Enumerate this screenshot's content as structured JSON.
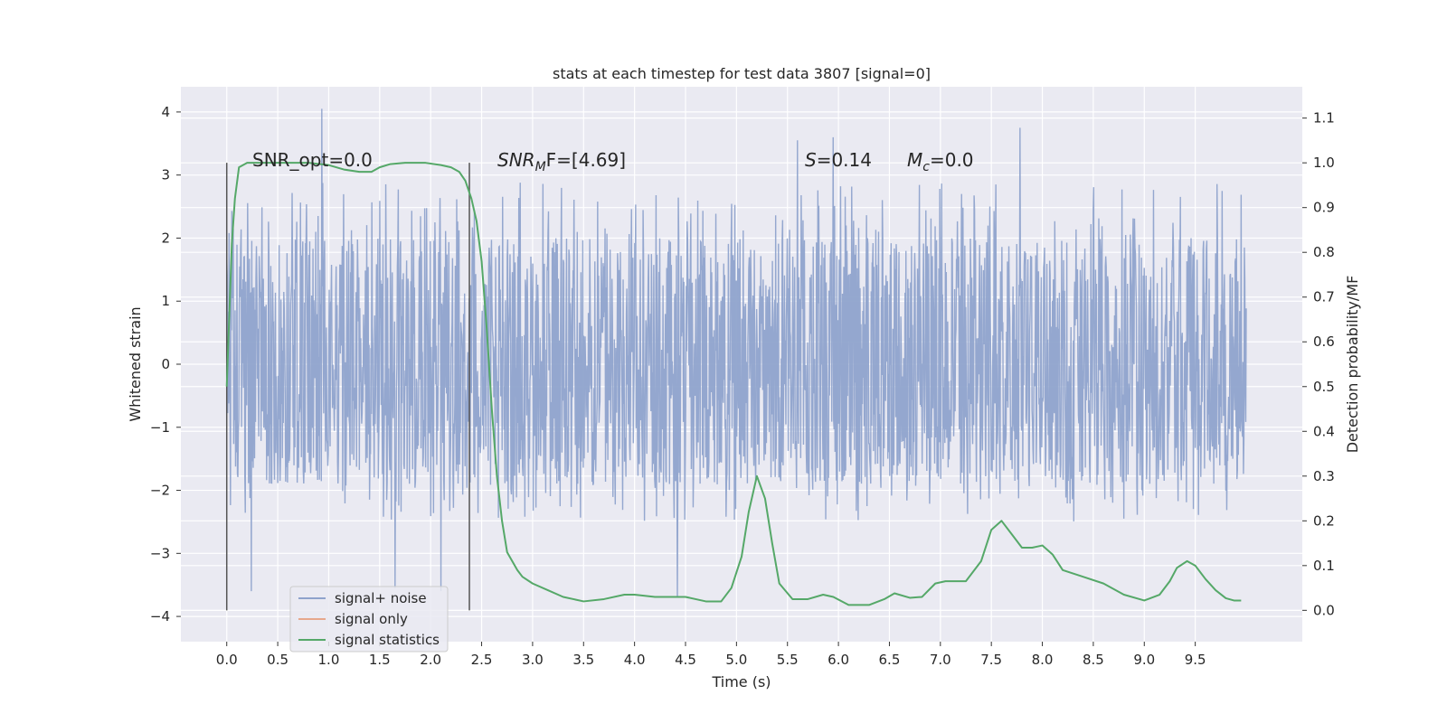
{
  "chart_data": {
    "type": "line",
    "title": "stats at each timestep for test data 3807 [signal=0]",
    "xlabel": "Time (s)",
    "ylabel": "Whitened strain",
    "y2label": "Detection probability/MF",
    "xlim": [
      -0.45,
      10.55
    ],
    "ylim": [
      -4.4,
      4.4
    ],
    "y2lim": [
      -0.07,
      1.17
    ],
    "x_ticks": [
      0.0,
      0.5,
      1.0,
      1.5,
      2.0,
      2.5,
      3.0,
      3.5,
      4.0,
      4.5,
      5.0,
      5.5,
      6.0,
      6.5,
      7.0,
      7.5,
      8.0,
      8.5,
      9.0,
      9.5
    ],
    "x_tick_labels": [
      "0.0",
      "0.5",
      "1.0",
      "1.5",
      "2.0",
      "2.5",
      "3.0",
      "3.5",
      "4.0",
      "4.5",
      "5.0",
      "5.5",
      "6.0",
      "6.5",
      "7.0",
      "7.5",
      "8.0",
      "8.5",
      "9.0",
      "9.5"
    ],
    "y_ticks": [
      -4,
      -3,
      -2,
      -1,
      0,
      1,
      2,
      3,
      4
    ],
    "y_tick_labels": [
      "−4",
      "−3",
      "−2",
      "−1",
      "0",
      "1",
      "2",
      "3",
      "4"
    ],
    "y2_ticks": [
      0.0,
      0.1,
      0.2,
      0.3,
      0.4,
      0.5,
      0.6,
      0.7,
      0.8,
      0.9,
      1.0,
      1.1
    ],
    "y2_tick_labels": [
      "0.0",
      "0.1",
      "0.2",
      "0.3",
      "0.4",
      "0.5",
      "0.6",
      "0.7",
      "0.8",
      "0.9",
      "1.0",
      "1.1"
    ],
    "grid": true,
    "legend_position": "lower-left",
    "legend": [
      {
        "label": "signal+ noise",
        "color": "#8fa3cc"
      },
      {
        "label": "signal only",
        "color": "#e7a88c"
      },
      {
        "label": "signal statistics",
        "color": "#55a868"
      }
    ],
    "annotations": {
      "snr_opt": "SNR_opt=0.0",
      "snr_mf_base": "SNR",
      "snr_mf_sub": "M",
      "snr_mf_rest": "F=[4.69]",
      "s_base": "S",
      "s_rest": "=0.14",
      "mc_base": "M",
      "mc_sub": "c",
      "mc_rest": "=0.0"
    },
    "vertical_markers": [
      0.0,
      2.38
    ],
    "noise": {
      "x_range": [
        0.0,
        10.0
      ],
      "dense_band": [
        -1.25,
        1.3
      ],
      "typical_peak_range": [
        -2.5,
        2.9
      ],
      "extremes": [
        {
          "x": 0.93,
          "y": 4.05
        },
        {
          "x": 0.24,
          "y": -3.6
        },
        {
          "x": 1.65,
          "y": -3.55
        },
        {
          "x": 2.1,
          "y": -3.6
        },
        {
          "x": 7.78,
          "y": 3.75
        },
        {
          "x": 5.6,
          "y": 3.55
        },
        {
          "x": 5.95,
          "y": 3.6
        },
        {
          "x": 4.42,
          "y": -3.7
        }
      ]
    },
    "series": [
      {
        "name": "signal statistics",
        "color": "#55a868",
        "x": [
          0.0,
          0.05,
          0.08,
          0.12,
          0.2,
          0.35,
          0.55,
          0.8,
          1.0,
          1.15,
          1.3,
          1.42,
          1.5,
          1.6,
          1.75,
          1.95,
          2.1,
          2.2,
          2.28,
          2.34,
          2.4,
          2.45,
          2.5,
          2.55,
          2.6,
          2.65,
          2.7,
          2.75,
          2.8,
          2.85,
          2.9,
          3.0,
          3.15,
          3.3,
          3.5,
          3.7,
          3.9,
          4.0,
          4.2,
          4.5,
          4.7,
          4.85,
          4.95,
          5.05,
          5.12,
          5.2,
          5.28,
          5.35,
          5.42,
          5.55,
          5.7,
          5.85,
          5.95,
          6.1,
          6.3,
          6.45,
          6.55,
          6.7,
          6.82,
          6.95,
          7.05,
          7.25,
          7.4,
          7.5,
          7.6,
          7.7,
          7.8,
          7.9,
          8.0,
          8.1,
          8.2,
          8.4,
          8.6,
          8.8,
          9.0,
          9.15,
          9.25,
          9.32,
          9.42,
          9.5,
          9.6,
          9.7,
          9.8,
          9.88,
          9.95
        ],
        "y": [
          0.5,
          0.82,
          0.92,
          0.99,
          1.0,
          1.0,
          1.0,
          1.0,
          0.995,
          0.985,
          0.98,
          0.98,
          0.99,
          0.997,
          1.0,
          1.0,
          0.995,
          0.99,
          0.98,
          0.96,
          0.92,
          0.87,
          0.78,
          0.63,
          0.45,
          0.3,
          0.2,
          0.13,
          0.11,
          0.09,
          0.075,
          0.06,
          0.045,
          0.03,
          0.02,
          0.025,
          0.035,
          0.035,
          0.03,
          0.03,
          0.02,
          0.02,
          0.05,
          0.12,
          0.22,
          0.3,
          0.25,
          0.15,
          0.06,
          0.025,
          0.025,
          0.035,
          0.03,
          0.012,
          0.012,
          0.025,
          0.038,
          0.028,
          0.03,
          0.06,
          0.065,
          0.065,
          0.11,
          0.18,
          0.2,
          0.17,
          0.14,
          0.14,
          0.145,
          0.125,
          0.09,
          0.075,
          0.06,
          0.035,
          0.022,
          0.035,
          0.065,
          0.095,
          0.11,
          0.1,
          0.07,
          0.045,
          0.027,
          0.022,
          0.022
        ]
      }
    ]
  }
}
